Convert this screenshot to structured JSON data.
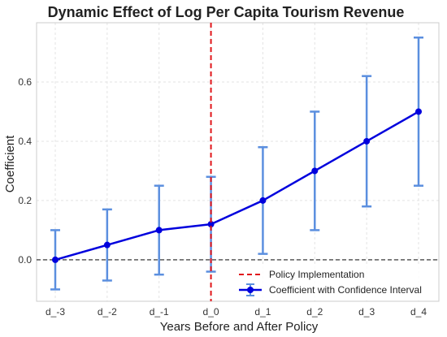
{
  "chart_data": {
    "type": "line",
    "title": "Dynamic Effect of Log Per Capita Tourism Revenue",
    "xlabel": "Years Before and After Policy",
    "ylabel": "Coefficient",
    "categories": [
      "d_-3",
      "d_-2",
      "d_-1",
      "d_0",
      "d_1",
      "d_2",
      "d_3",
      "d_4"
    ],
    "series": [
      {
        "name": "Coefficient with Confidence Interval",
        "values": [
          0.0,
          0.05,
          0.1,
          0.12,
          0.2,
          0.3,
          0.4,
          0.5
        ],
        "ci_lower": [
          -0.1,
          -0.07,
          -0.05,
          -0.04,
          0.02,
          0.1,
          0.18,
          0.25
        ],
        "ci_upper": [
          0.1,
          0.17,
          0.25,
          0.28,
          0.38,
          0.5,
          0.62,
          0.75
        ],
        "color": "#0000dd",
        "errorbar_color": "#5b8fdf"
      }
    ],
    "policy_line": {
      "name": "Policy Implementation",
      "category": "d_0",
      "color": "#e0161b"
    },
    "zero_line": {
      "value": 0,
      "color": "#222222"
    },
    "ylim": [
      -0.14,
      0.8
    ],
    "yticks": [
      0.0,
      0.2,
      0.4,
      0.6
    ],
    "ytick_labels": [
      "0.0",
      "0.2",
      "0.4",
      "0.6"
    ],
    "grid": true,
    "legend": {
      "placement": "bottom-right",
      "entries": [
        "Policy Implementation",
        "Coefficient with Confidence Interval"
      ]
    }
  }
}
